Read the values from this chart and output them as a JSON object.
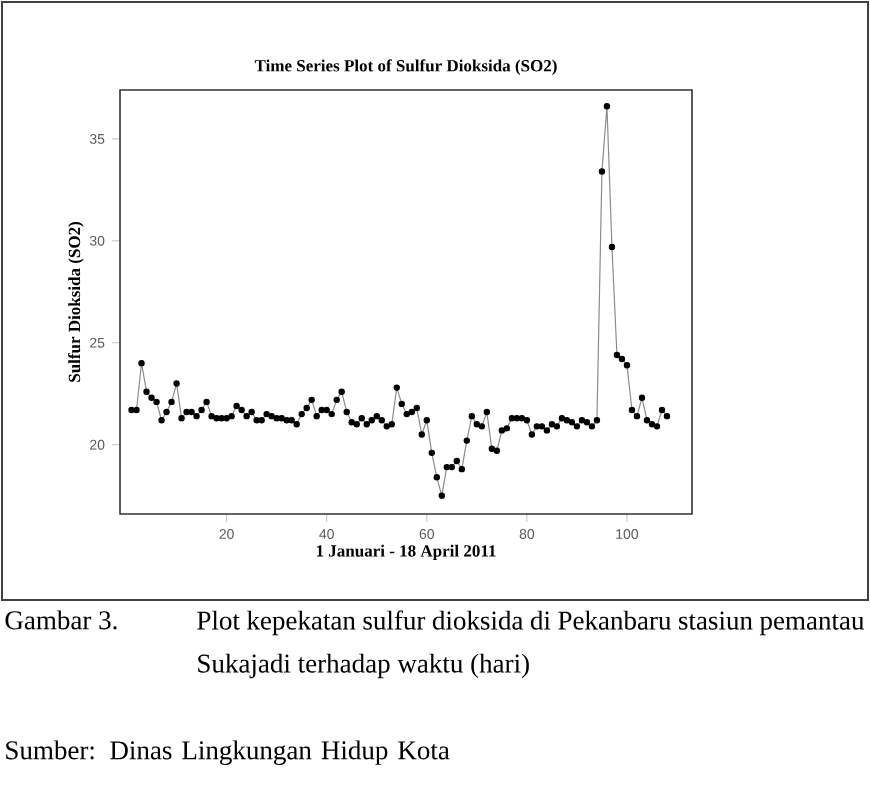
{
  "chart_data": {
    "type": "line",
    "title": "Time Series Plot of Sulfur Dioksida (SO2)",
    "xlabel": "1 Januari - 18 April 2011",
    "ylabel": "Sulfur Dioksida (SO2)",
    "x": [
      1,
      2,
      3,
      4,
      5,
      6,
      7,
      8,
      9,
      10,
      11,
      12,
      13,
      14,
      15,
      16,
      17,
      18,
      19,
      20,
      21,
      22,
      23,
      24,
      25,
      26,
      27,
      28,
      29,
      30,
      31,
      32,
      33,
      34,
      35,
      36,
      37,
      38,
      39,
      40,
      41,
      42,
      43,
      44,
      45,
      46,
      47,
      48,
      49,
      50,
      51,
      52,
      53,
      54,
      55,
      56,
      57,
      58,
      59,
      60,
      61,
      62,
      63,
      64,
      65,
      66,
      67,
      68,
      69,
      70,
      71,
      72,
      73,
      74,
      75,
      76,
      77,
      78,
      79,
      80,
      81,
      82,
      83,
      84,
      85,
      86,
      87,
      88,
      89,
      90,
      91,
      92,
      93,
      94,
      95,
      96,
      97,
      98,
      99,
      100,
      101,
      102,
      103,
      104,
      105,
      106,
      107,
      108
    ],
    "series": [
      {
        "color": "#000000",
        "values": [
          21.7,
          21.7,
          24.0,
          22.6,
          22.3,
          22.1,
          21.2,
          21.6,
          22.1,
          23.0,
          21.3,
          21.6,
          21.6,
          21.4,
          21.7,
          22.1,
          21.4,
          21.3,
          21.3,
          21.3,
          21.4,
          21.9,
          21.7,
          21.4,
          21.6,
          21.2,
          21.2,
          21.5,
          21.4,
          21.3,
          21.3,
          21.2,
          21.2,
          21.0,
          21.5,
          21.8,
          22.2,
          21.4,
          21.7,
          21.7,
          21.5,
          22.2,
          22.6,
          21.6,
          21.1,
          21.0,
          21.3,
          21.0,
          21.2,
          21.4,
          21.2,
          20.9,
          21.0,
          22.8,
          22.0,
          21.5,
          21.6,
          21.8,
          20.5,
          21.2,
          19.6,
          18.4,
          17.5,
          18.9,
          18.9,
          19.2,
          18.8,
          20.2,
          21.4,
          21.0,
          20.9,
          21.6,
          19.8,
          19.7,
          20.7,
          20.8,
          21.3,
          21.3,
          21.3,
          21.2,
          20.5,
          20.9,
          20.9,
          20.7,
          21.0,
          20.9,
          21.3,
          21.2,
          21.1,
          20.9,
          21.2,
          21.1,
          20.9,
          21.2,
          33.4,
          36.6,
          29.7,
          24.4,
          24.2,
          23.9,
          21.7,
          21.4,
          22.3,
          21.2,
          21.0,
          20.9,
          21.7,
          21.4
        ]
      }
    ],
    "xlim": [
      -1.3,
      113
    ],
    "ylim": [
      16.6,
      37.4
    ],
    "xticks": [
      20,
      40,
      60,
      80,
      100
    ],
    "yticks": [
      20,
      25,
      30,
      35
    ],
    "grid": false,
    "marker": "circle",
    "line_style": "solid",
    "annotations": [
      "Gambar 3.",
      "Plot kepekatan sulfur dioksida di Pekanbaru stasiun pemantau Sukajadi terhadap waktu (hari)",
      "Sumber: Dinas Lingkungan Hidup Kota"
    ]
  }
}
